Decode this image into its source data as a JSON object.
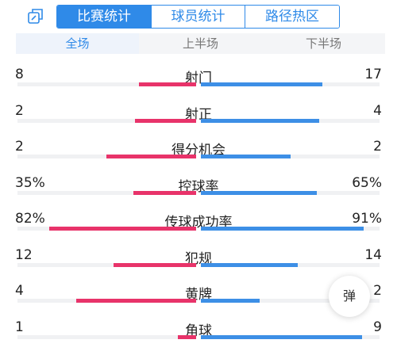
{
  "header": {
    "share_icon": "share-icon",
    "tabs": [
      {
        "label": "比赛统计",
        "active": true
      },
      {
        "label": "球员统计",
        "active": false
      },
      {
        "label": "路径热区",
        "active": false
      }
    ]
  },
  "subtabs": [
    {
      "label": "全场",
      "active": true
    },
    {
      "label": "上半场",
      "active": false
    },
    {
      "label": "下半场",
      "active": false
    }
  ],
  "colors": {
    "home": "#e8336a",
    "away": "#3d8fe6",
    "accent": "#2f8ae8"
  },
  "stats": [
    {
      "label": "射门",
      "left": "8",
      "right": "17",
      "left_share": 0.32,
      "right_share": 0.68
    },
    {
      "label": "射正",
      "left": "2",
      "right": "4",
      "left_share": 0.34,
      "right_share": 0.66
    },
    {
      "label": "得分机会",
      "left": "2",
      "right": "2",
      "left_share": 0.5,
      "right_share": 0.5
    },
    {
      "label": "控球率",
      "left": "35%",
      "right": "65%",
      "left_share": 0.35,
      "right_share": 0.65
    },
    {
      "label": "传球成功率",
      "left": "82%",
      "right": "91%",
      "left_share": 0.82,
      "right_share": 0.91
    },
    {
      "label": "犯规",
      "left": "12",
      "right": "14",
      "left_share": 0.46,
      "right_share": 0.54
    },
    {
      "label": "黄牌",
      "left": "4",
      "right": "2",
      "left_share": 0.67,
      "right_share": 0.33
    },
    {
      "label": "角球",
      "left": "1",
      "right": "9",
      "left_share": 0.1,
      "right_share": 0.9
    }
  ],
  "float_button": {
    "label": "弹"
  }
}
